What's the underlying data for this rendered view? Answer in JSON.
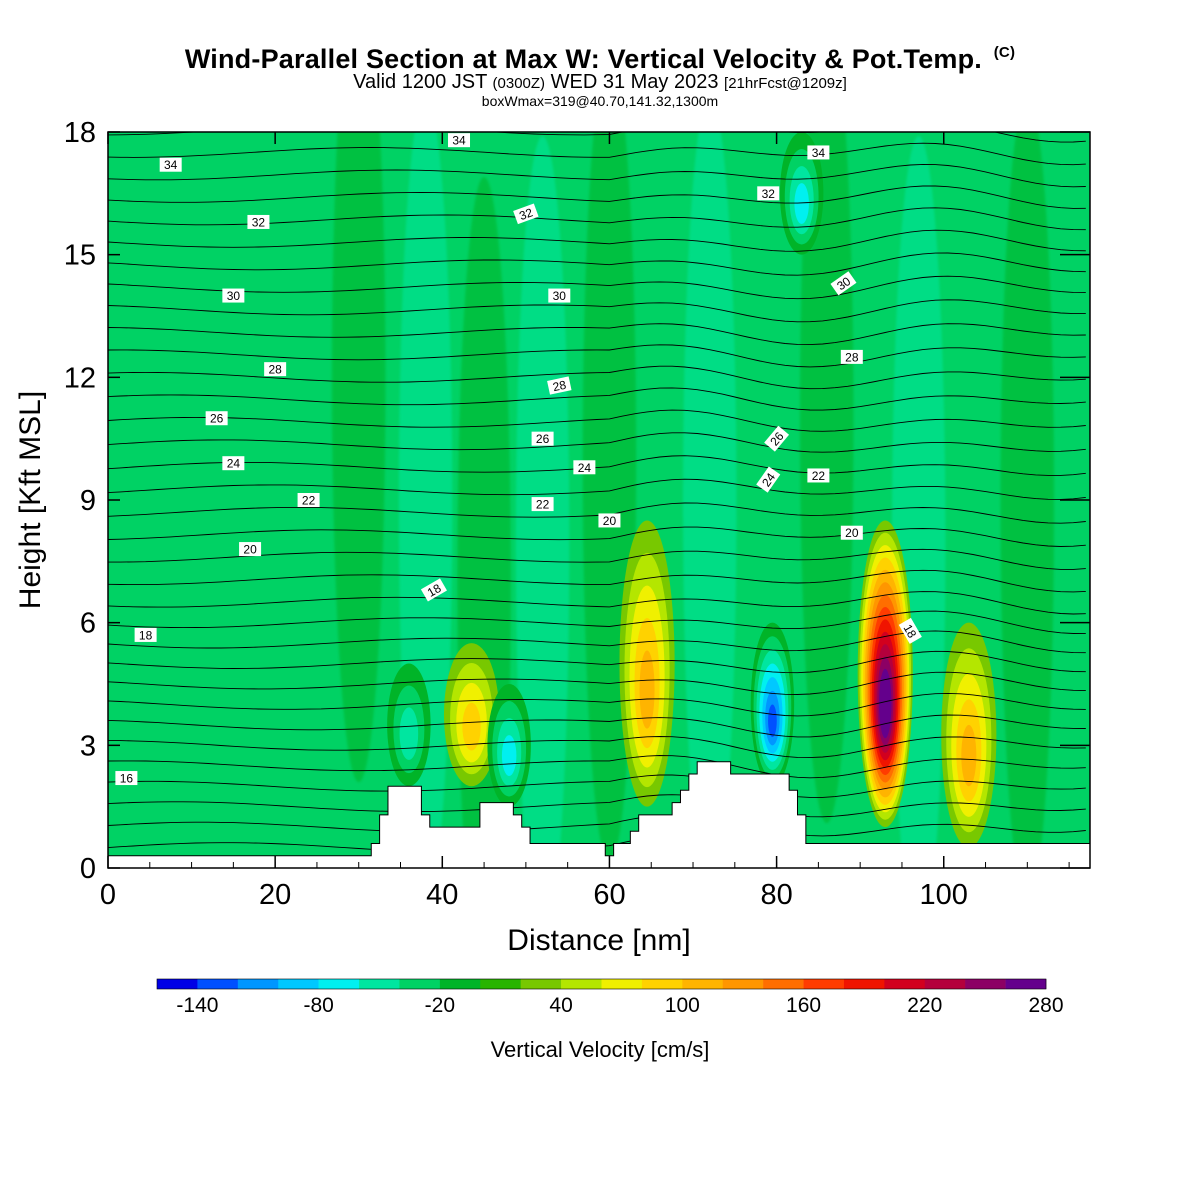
{
  "header": {
    "title": "Wind-Parallel Section at Max W: Vertical Velocity & Pot.Temp.",
    "title_unit": "(C)",
    "valid_prefix": "Valid 1200 JST",
    "valid_z": "(0300Z)",
    "valid_date": "WED 31 May 2023",
    "forecast": "[21hrFcst@1209z]",
    "boxwmax": "boxWmax=319@40.70,141.32,1300m"
  },
  "chart_data": {
    "type": "heatmap",
    "title": "Wind-Parallel Section at Max W: Vertical Velocity & Pot.Temp.",
    "xlabel": "Distance [nm]",
    "ylabel": "Height [Kft MSL]",
    "xlim": [
      0,
      117.5
    ],
    "ylim": [
      0,
      18
    ],
    "xticks": [
      0,
      20,
      40,
      60,
      80,
      100
    ],
    "yticks": [
      0,
      3,
      6,
      9,
      12,
      15,
      18
    ],
    "colorbar": {
      "title": "Vertical Velocity [cm/s]",
      "min": -160,
      "step": 20,
      "tick_labels": [
        "-140",
        "-80",
        "-20",
        "40",
        "100",
        "160",
        "220",
        "280"
      ],
      "colors": [
        "#0000e6",
        "#0050ff",
        "#0096ff",
        "#00c8ff",
        "#00f0f0",
        "#00e6a0",
        "#00d264",
        "#00b428",
        "#28b400",
        "#78c800",
        "#b4e600",
        "#f0f000",
        "#ffd200",
        "#ffb400",
        "#ff9600",
        "#ff6e00",
        "#ff3c00",
        "#f01400",
        "#d2001e",
        "#b4003c",
        "#8c0064",
        "#64008c"
      ]
    },
    "w_series": [
      {
        "name": "updraft",
        "x": 93,
        "z_base": 1.0,
        "z_top": 8.5,
        "w_max": 319
      },
      {
        "name": "updraft",
        "x": 64.5,
        "z_base": 1.5,
        "z_top": 8.5,
        "w_max": 110
      },
      {
        "name": "updraft",
        "x": 103,
        "z_base": 0.5,
        "z_top": 6.0,
        "w_max": 100
      },
      {
        "name": "updraft",
        "x": 43.5,
        "z_base": 2.0,
        "z_top": 5.5,
        "w_max": 90
      },
      {
        "name": "downdraft",
        "x": 79.5,
        "z_base": 2.0,
        "z_top": 6.0,
        "w_max": -140
      },
      {
        "name": "downdraft",
        "x": 48,
        "z_base": 1.5,
        "z_top": 4.5,
        "w_max": -90
      },
      {
        "name": "downdraft",
        "x": 83,
        "z_base": 15.0,
        "z_top": 18.0,
        "w_max": -80
      },
      {
        "name": "downdraft",
        "x": 36,
        "z_base": 2.0,
        "z_top": 5.0,
        "w_max": -60
      }
    ],
    "terrain": {
      "x": [
        0,
        31,
        31.5,
        32.5,
        33.5,
        36.5,
        37.5,
        38.5,
        44.5,
        47.5,
        48.5,
        49.5,
        50.5,
        59.5,
        60.5,
        62.5,
        63.5,
        64.5,
        67.5,
        68.5,
        69.5,
        70.5,
        71.5,
        73.5,
        74.5,
        80.5,
        81.5,
        82.5,
        83.5,
        117.5
      ],
      "z": [
        0.3,
        0.3,
        0.6,
        1.3,
        2.0,
        2.0,
        1.3,
        1.0,
        1.6,
        1.6,
        1.3,
        1.0,
        0.6,
        0.3,
        0.6,
        0.9,
        1.3,
        1.3,
        1.6,
        1.9,
        2.3,
        2.6,
        2.6,
        2.6,
        2.3,
        2.3,
        1.9,
        1.3,
        0.6,
        0.3
      ]
    },
    "theta_contour_labels": [
      "34",
      "32",
      "30",
      "28",
      "26",
      "24",
      "22",
      "20",
      "18",
      "16",
      "34",
      "32",
      "30",
      "28",
      "26",
      "24",
      "22",
      "20",
      "18",
      "34",
      "32",
      "30",
      "28",
      "26",
      "24",
      "22",
      "20",
      "18"
    ]
  }
}
